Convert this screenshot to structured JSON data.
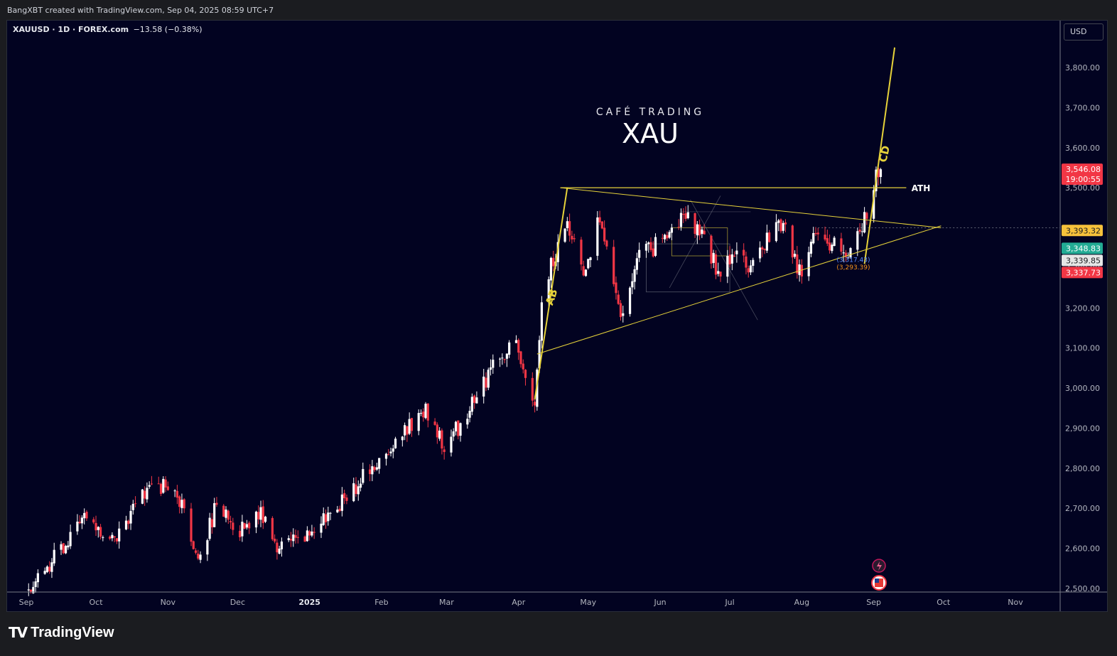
{
  "header": {
    "credit": "BangXBT created with TradingView.com, Sep 04, 2025 08:59 UTC+7"
  },
  "legend": {
    "name": "XAUUSD · 1D · FOREX.com",
    "change": "−13.58 (−0.38%)"
  },
  "currency_button": "USD",
  "overlay": {
    "brand": "CAFÉ TRADING",
    "symbol": "XAU"
  },
  "annotations": {
    "ab": "AB",
    "cd": "CD",
    "ath": "ATH",
    "small_blue": "(3,317.43)",
    "small_orange": "(3,293.39)"
  },
  "footer": {
    "logo_glyph": "TV",
    "logo_text": "TradingView"
  },
  "colors": {
    "background": "#020321",
    "up": "#ffffff",
    "down": "#f23645",
    "drawing": "#e6d23a",
    "accent_green": "#22ab94",
    "accent_red": "#f23645",
    "accent_yellow": "#f7c23b"
  },
  "price_labels": [
    {
      "value": 3546.08,
      "text": "3,546.08",
      "sub": "19:00:55",
      "color": "#f23645",
      "text_color": "#ffffff"
    },
    {
      "value": 3393.32,
      "text": "3,393.32",
      "color": "#f7c23b",
      "text_color": "#1b1c20"
    },
    {
      "value": 3348.83,
      "text": "3,348.83",
      "color": "#22ab94",
      "text_color": "#ffffff"
    },
    {
      "value": 3339.85,
      "text": "3,339.85",
      "color": "#e6e6e6",
      "text_color": "#1b1c20"
    },
    {
      "value": 3337.73,
      "text": "3,337.73",
      "color": "#f23645",
      "text_color": "#ffffff"
    }
  ],
  "chart_data": {
    "type": "candlestick",
    "y_ticks": [
      {
        "value": 2500,
        "label": "2,500.00"
      },
      {
        "value": 2600,
        "label": "2,600.00"
      },
      {
        "value": 2700,
        "label": "2,700.00"
      },
      {
        "value": 2800,
        "label": "2,800.00"
      },
      {
        "value": 2900,
        "label": "2,900.00"
      },
      {
        "value": 3000,
        "label": "3,000.00"
      },
      {
        "value": 3100,
        "label": "3,100.00"
      },
      {
        "value": 3200,
        "label": "3,200.00"
      },
      {
        "value": 3300,
        "label": "3,300.00"
      },
      {
        "value": 3400,
        "label": "3,400.00"
      },
      {
        "value": 3500,
        "label": "3,500.00"
      },
      {
        "value": 3600,
        "label": "3,600.00"
      },
      {
        "value": 3700,
        "label": "3,700.00"
      },
      {
        "value": 3800,
        "label": "3,800.00"
      }
    ],
    "x_ticks": [
      {
        "month": "2024-09",
        "label": "Sep"
      },
      {
        "month": "2024-10",
        "label": "Oct"
      },
      {
        "month": "2024-11",
        "label": "Nov"
      },
      {
        "month": "2024-12",
        "label": "Dec"
      },
      {
        "month": "2025-01",
        "label": "2025",
        "bold": true
      },
      {
        "month": "2025-02",
        "label": "Feb"
      },
      {
        "month": "2025-03",
        "label": "Mar"
      },
      {
        "month": "2025-04",
        "label": "Apr"
      },
      {
        "month": "2025-05",
        "label": "May"
      },
      {
        "month": "2025-06",
        "label": "Jun"
      },
      {
        "month": "2025-07",
        "label": "Jul"
      },
      {
        "month": "2025-08",
        "label": "Aug"
      },
      {
        "month": "2025-09",
        "label": "Sep"
      },
      {
        "month": "2025-10",
        "label": "Oct"
      },
      {
        "month": "2025-11",
        "label": "Nov"
      }
    ],
    "ylim": [
      2494,
      3876
    ],
    "close_path": [
      [
        "2024-09-02",
        2498
      ],
      [
        "2024-09-13",
        2578
      ],
      [
        "2024-09-26",
        2668
      ],
      [
        "2024-10-10",
        2628
      ],
      [
        "2024-10-22",
        2742
      ],
      [
        "2024-10-31",
        2760
      ],
      [
        "2024-11-07",
        2700
      ],
      [
        "2024-11-14",
        2568
      ],
      [
        "2024-11-22",
        2710
      ],
      [
        "2024-12-02",
        2640
      ],
      [
        "2024-12-10",
        2690
      ],
      [
        "2024-12-19",
        2600
      ],
      [
        "2024-12-31",
        2625
      ],
      [
        "2025-01-10",
        2690
      ],
      [
        "2025-01-24",
        2775
      ],
      [
        "2025-02-11",
        2900
      ],
      [
        "2025-02-20",
        2950
      ],
      [
        "2025-02-28",
        2858
      ],
      [
        "2025-03-07",
        2910
      ],
      [
        "2025-03-20",
        3045
      ],
      [
        "2025-03-31",
        3120
      ],
      [
        "2025-04-08",
        2970
      ],
      [
        "2025-04-11",
        3230
      ],
      [
        "2025-04-22",
        3420
      ],
      [
        "2025-04-30",
        3290
      ],
      [
        "2025-05-06",
        3430
      ],
      [
        "2025-05-15",
        3180
      ],
      [
        "2025-05-23",
        3360
      ],
      [
        "2025-06-02",
        3350
      ],
      [
        "2025-06-13",
        3435
      ],
      [
        "2025-06-20",
        3370
      ],
      [
        "2025-06-27",
        3270
      ],
      [
        "2025-07-03",
        3340
      ],
      [
        "2025-07-09",
        3300
      ],
      [
        "2025-07-22",
        3430
      ],
      [
        "2025-07-31",
        3290
      ],
      [
        "2025-08-08",
        3397
      ],
      [
        "2025-08-20",
        3315
      ],
      [
        "2025-08-29",
        3447
      ],
      [
        "2025-09-02",
        3530
      ],
      [
        "2025-09-04",
        3546.08
      ]
    ],
    "series": [
      {
        "name": "XAUUSD · 1D · FOREX.com",
        "type": "candlestick"
      }
    ]
  }
}
